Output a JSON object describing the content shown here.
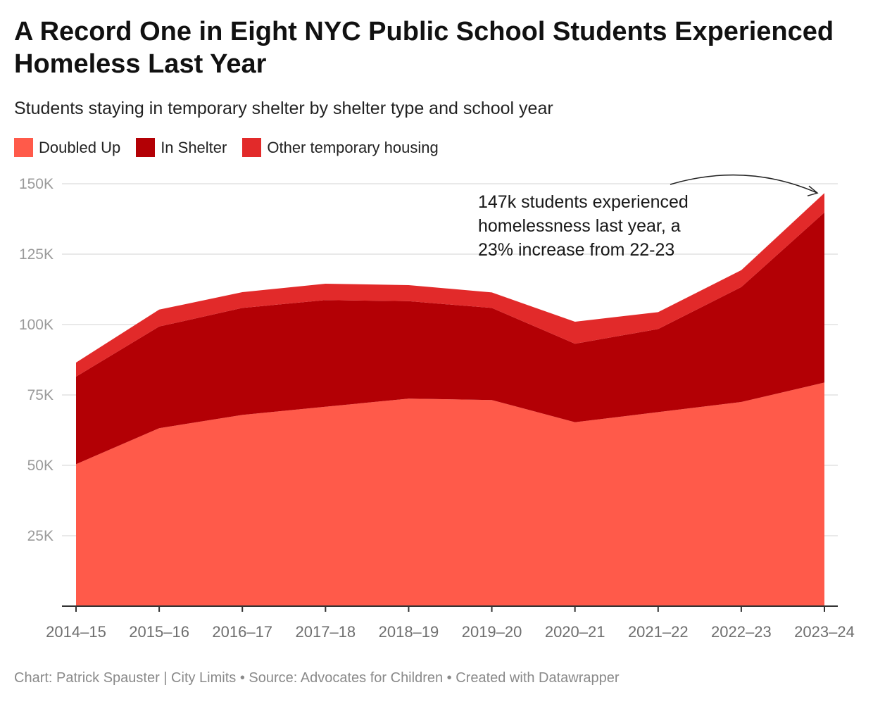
{
  "header": {
    "title": "A Record One in Eight NYC Public School Students Experienced Homeless Last Year",
    "subtitle": "Students staying in temporary shelter by shelter type and school year"
  },
  "footer": {
    "credit": "Chart: Patrick Spauster | City Limits • Source: Advocates for Children • Created with Datawrapper"
  },
  "chart_data": {
    "type": "area",
    "stacked": true,
    "title": "A Record One in Eight NYC Public School Students Experienced Homeless Last Year",
    "subtitle": "Students staying in temporary shelter by shelter type and school year",
    "xlabel": "",
    "ylabel": "",
    "categories": [
      "2014–15",
      "2015–16",
      "2016–17",
      "2017–18",
      "2018–19",
      "2019–20",
      "2020–21",
      "2021–22",
      "2022–23",
      "2023–24"
    ],
    "ylim": [
      0,
      150000
    ],
    "yticks": [
      25000,
      50000,
      75000,
      100000,
      125000,
      150000
    ],
    "ytick_labels": [
      "25K",
      "50K",
      "75K",
      "100K",
      "125K",
      "150K"
    ],
    "grid": true,
    "legend": "top-left",
    "series": [
      {
        "name": "Doubled Up",
        "color": "#ff5a4a",
        "values": [
          50400,
          63200,
          67900,
          70800,
          73700,
          73200,
          65300,
          68900,
          72500,
          79400
        ]
      },
      {
        "name": "In Shelter",
        "color": "#b30005",
        "values": [
          31100,
          36100,
          38000,
          37900,
          34600,
          32700,
          27900,
          29500,
          40800,
          60400
        ]
      },
      {
        "name": "Other temporary housing",
        "color": "#e22a2a",
        "values": [
          5000,
          6000,
          5600,
          5800,
          5700,
          5500,
          7800,
          6000,
          6000,
          6900
        ]
      }
    ],
    "annotations": [
      {
        "lines": [
          "147k students experienced",
          "homelessness last year, a",
          "23% increase from 22-23"
        ],
        "target": "2023–24"
      }
    ]
  }
}
